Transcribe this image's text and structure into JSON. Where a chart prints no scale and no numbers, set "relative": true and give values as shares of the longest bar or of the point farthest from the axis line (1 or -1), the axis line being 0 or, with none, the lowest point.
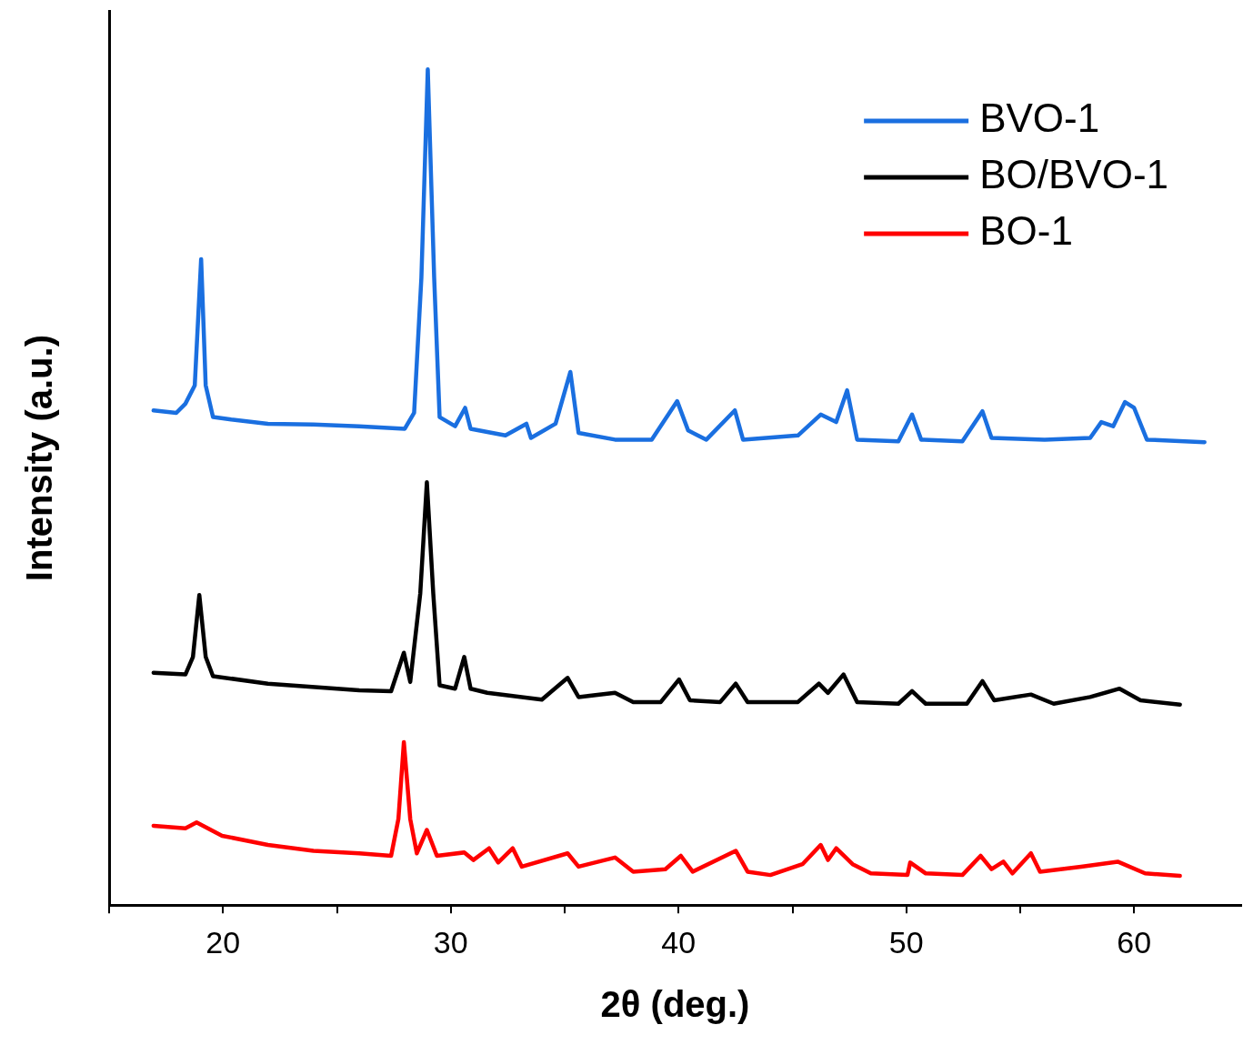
{
  "chart_data": {
    "type": "line",
    "xlabel": "2θ (deg.)",
    "ylabel": "Intensity (a.u.)",
    "relative": true,
    "xlim": [
      15,
      64.7
    ],
    "xticks": [
      {
        "value": 15,
        "label": null
      },
      20,
      {
        "value": 25,
        "label": null
      },
      30,
      {
        "value": 35,
        "label": null
      },
      40,
      {
        "value": 45,
        "label": null
      },
      50,
      {
        "value": 55,
        "label": null
      },
      60
    ],
    "grid": false,
    "legend": "top right",
    "marker": "none",
    "line_style": "solid",
    "series": [
      {
        "name": "BVO-1",
        "color": "#1a6fe0",
        "x": [
          16.95,
          17.95,
          18.35,
          18.76,
          19.04,
          19.24,
          19.56,
          20.36,
          21.97,
          23.97,
          25.98,
          27.98,
          28.39,
          28.71,
          28.99,
          29.27,
          29.51,
          30.19,
          30.63,
          30.87,
          32.4,
          33.32,
          33.52,
          34.6,
          35.25,
          35.61,
          37.21,
          38.82,
          39.94,
          40.42,
          41.22,
          42.47,
          42.83,
          45.24,
          46.24,
          46.92,
          47.4,
          47.84,
          49.65,
          50.25,
          50.65,
          52.46,
          53.34,
          53.74,
          56.07,
          58.07,
          58.56,
          59.08,
          59.6,
          60,
          60.56,
          63.09
        ],
        "values": [
          0.592,
          0.589,
          0.6,
          0.622,
          0.773,
          0.622,
          0.584,
          0.581,
          0.576,
          0.575,
          0.573,
          0.57,
          0.589,
          0.751,
          1,
          0.751,
          0.584,
          0.573,
          0.595,
          0.57,
          0.562,
          0.576,
          0.559,
          0.576,
          0.638,
          0.565,
          0.557,
          0.557,
          0.603,
          0.568,
          0.557,
          0.592,
          0.557,
          0.562,
          0.587,
          0.578,
          0.616,
          0.557,
          0.555,
          0.587,
          0.557,
          0.555,
          0.591,
          0.559,
          0.557,
          0.559,
          0.578,
          0.573,
          0.602,
          0.595,
          0.557,
          0.554
        ]
      },
      {
        "name": "BO/BVO-1",
        "color": "#000000",
        "x": [
          16.95,
          18.35,
          18.68,
          18.96,
          19.24,
          19.56,
          21.97,
          25.98,
          27.38,
          27.94,
          28.22,
          28.66,
          28.95,
          29.23,
          29.51,
          30.19,
          30.59,
          30.87,
          31.6,
          34,
          35.13,
          35.61,
          37.21,
          38.01,
          39.22,
          40.02,
          40.5,
          41.83,
          42.51,
          43.03,
          45.24,
          46.16,
          46.56,
          47.24,
          47.84,
          49.65,
          50.25,
          50.85,
          52.66,
          53.34,
          53.86,
          55.47,
          56.47,
          58.07,
          59.36,
          60.28,
          62.01
        ],
        "values": [
          0.278,
          0.276,
          0.297,
          0.371,
          0.297,
          0.274,
          0.265,
          0.257,
          0.256,
          0.302,
          0.267,
          0.373,
          0.506,
          0.373,
          0.263,
          0.259,
          0.297,
          0.259,
          0.254,
          0.246,
          0.272,
          0.249,
          0.254,
          0.243,
          0.243,
          0.27,
          0.245,
          0.243,
          0.265,
          0.243,
          0.243,
          0.265,
          0.254,
          0.276,
          0.243,
          0.241,
          0.256,
          0.241,
          0.241,
          0.268,
          0.245,
          0.252,
          0.241,
          0.249,
          0.259,
          0.245,
          0.24
        ]
      },
      {
        "name": "BO-1",
        "color": "#ff0000",
        "x": [
          16.95,
          18.35,
          18.84,
          19.96,
          21.97,
          23.97,
          25.98,
          27.38,
          27.7,
          27.94,
          28.22,
          28.51,
          28.95,
          29.39,
          30.59,
          30.99,
          31.68,
          32.08,
          32.72,
          33.12,
          35.13,
          35.61,
          37.21,
          38.01,
          39.42,
          40.1,
          40.62,
          42.51,
          43.03,
          44.03,
          45.44,
          46.24,
          46.56,
          46.92,
          47.64,
          48.44,
          50.05,
          50.17,
          50.85,
          52.46,
          53.26,
          53.74,
          54.26,
          54.66,
          55.47,
          55.87,
          57.67,
          59.28,
          60.48,
          62.01
        ],
        "values": [
          0.095,
          0.092,
          0.099,
          0.083,
          0.072,
          0.065,
          0.062,
          0.059,
          0.103,
          0.195,
          0.103,
          0.062,
          0.09,
          0.059,
          0.063,
          0.054,
          0.068,
          0.051,
          0.068,
          0.046,
          0.062,
          0.046,
          0.057,
          0.04,
          0.043,
          0.059,
          0.04,
          0.065,
          0.04,
          0.036,
          0.049,
          0.072,
          0.054,
          0.068,
          0.049,
          0.038,
          0.036,
          0.051,
          0.038,
          0.036,
          0.059,
          0.043,
          0.052,
          0.038,
          0.062,
          0.04,
          0.046,
          0.052,
          0.038,
          0.035
        ]
      }
    ]
  }
}
